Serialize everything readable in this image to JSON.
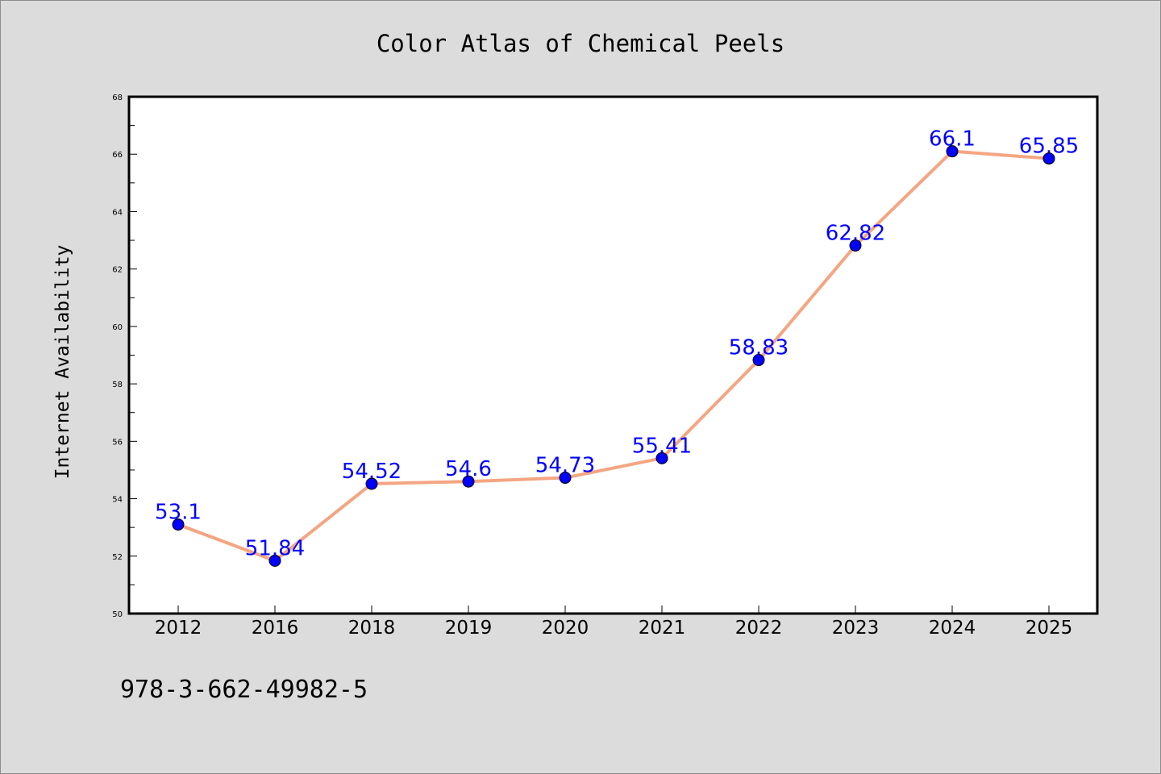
{
  "chart_data": {
    "type": "line",
    "title": "Color Atlas of Chemical Peels",
    "xlabel": "",
    "ylabel": "Internet Availability",
    "categories": [
      "2012",
      "2016",
      "2018",
      "2019",
      "2020",
      "2021",
      "2022",
      "2023",
      "2024",
      "2025"
    ],
    "series": [
      {
        "values": [
          53.1,
          51.84,
          54.52,
          54.6,
          54.73,
          55.41,
          58.83,
          62.82,
          66.1,
          65.85
        ],
        "labels": [
          "53.1",
          "51.84",
          "54.52",
          "54.6",
          "54.73",
          "55.41",
          "58.83",
          "62.82",
          "66.1",
          "65.85"
        ],
        "line_color": "#f4a582",
        "marker_color": "#0000ff",
        "label_color": "#0000ff"
      }
    ],
    "ylim": [
      50,
      68
    ],
    "yticks": [
      "50",
      "52",
      "54",
      "56",
      "58",
      "60",
      "62",
      "64",
      "66",
      "68"
    ],
    "grid": false,
    "legend": "none"
  },
  "footer_text": "978-3-662-49982-5",
  "colors": {
    "background": "#dcdcdc",
    "plot_background": "#ffffff",
    "line": "#f4a582",
    "marker": "#0000ff",
    "label": "#0000ff"
  }
}
